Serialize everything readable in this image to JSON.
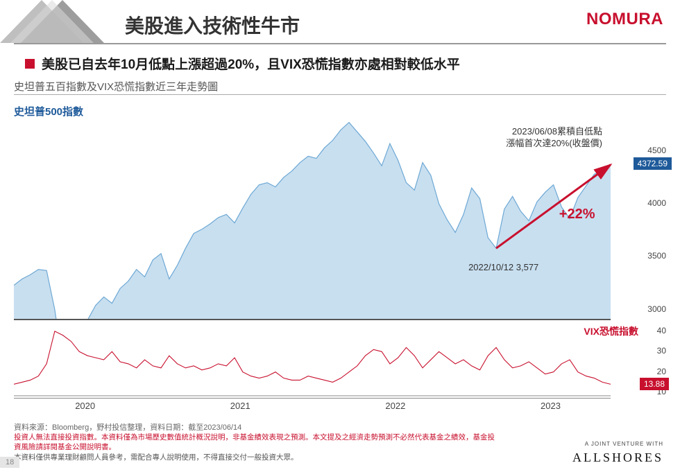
{
  "header": {
    "title": "美股進入技術性牛市",
    "brand": "NOMURA",
    "brand_color": "#c8102e"
  },
  "bullet": {
    "text": "美股已自去年10月低點上漲超過20%，且VIX恐慌指數亦處相對較低水平"
  },
  "subtitle": "史坦普五百指數及VIX恐慌指數近三年走勢圖",
  "sp500": {
    "type": "area",
    "label": "史坦普500指數",
    "label_color": "#1e5a9a",
    "fill_color": "#c8dff0",
    "line_color": "#6da8d4",
    "ylim": [
      2900,
      4800
    ],
    "yticks": [
      3000,
      3500,
      4000,
      4500
    ],
    "last_value": "4372.59",
    "badge_color": "#1e5a9a",
    "series": [
      3230,
      3290,
      3330,
      3380,
      3370,
      3000,
      2480,
      2600,
      2820,
      2900,
      3040,
      3120,
      3060,
      3200,
      3270,
      3380,
      3310,
      3470,
      3530,
      3290,
      3420,
      3580,
      3720,
      3760,
      3810,
      3870,
      3900,
      3820,
      3960,
      4090,
      4180,
      4200,
      4160,
      4250,
      4310,
      4390,
      4450,
      4430,
      4530,
      4600,
      4700,
      4770,
      4680,
      4590,
      4480,
      4360,
      4570,
      4410,
      4200,
      4130,
      4390,
      4270,
      4000,
      3850,
      3730,
      3900,
      4150,
      4050,
      3680,
      3580,
      3950,
      4070,
      3930,
      3840,
      4020,
      4110,
      4180,
      3970,
      3860,
      4060,
      4170,
      4280,
      4320,
      4370
    ],
    "annotation_top": {
      "line1": "2023/06/08累積自低點",
      "line2": "漲幅首次達20%(收盤價)"
    },
    "annotation_pct": "+22%",
    "annotation_pct_color": "#c8102e",
    "annotation_low": "2022/10/12 3,577",
    "arrow_color": "#c8102e"
  },
  "vix": {
    "type": "line",
    "label": "VIX恐慌指數",
    "label_color": "#c8102e",
    "line_color": "#c8102e",
    "ylim": [
      8,
      42
    ],
    "yticks": [
      10,
      20,
      30,
      40
    ],
    "last_value": "13.88",
    "badge_color": "#c8102e",
    "series": [
      14,
      15,
      16,
      18,
      24,
      40,
      38,
      35,
      30,
      28,
      27,
      26,
      30,
      25,
      24,
      22,
      26,
      23,
      22,
      28,
      24,
      22,
      23,
      21,
      22,
      24,
      23,
      27,
      20,
      18,
      17,
      18,
      20,
      17,
      16,
      16,
      18,
      17,
      16,
      15,
      17,
      20,
      23,
      28,
      31,
      30,
      24,
      27,
      32,
      28,
      22,
      26,
      30,
      27,
      24,
      26,
      23,
      21,
      28,
      32,
      26,
      22,
      23,
      25,
      22,
      19,
      20,
      24,
      26,
      20,
      18,
      17,
      15,
      14
    ]
  },
  "xaxis": {
    "labels": [
      "2020",
      "2021",
      "2022",
      "2023"
    ],
    "positions_pct": [
      12,
      38,
      64,
      90
    ]
  },
  "footer": {
    "source": "資料來源：Bloomberg，野村投信整理，資料日期：截至2023/06/14",
    "disclaimer1": "投資人無法直接投資指數。本資料僅為市場歷史數值統計概況說明，非基金績效表現之預測。本文提及之經濟走勢預測不必然代表基金之績效，基金投資風險請詳閱基金公開說明書。",
    "disclaimer2": "本資料僅供專業理財顧問人員參考，需配合專人說明使用，不得直接交付一般投資大眾。",
    "page_number": "18",
    "jv_text": "A JOINT VENTURE WITH",
    "allshores": "ALLSHORES"
  },
  "triangles": {
    "c1": "#bfbfbf",
    "c2": "#8c8c8c",
    "c3": "#d9d9d9"
  }
}
